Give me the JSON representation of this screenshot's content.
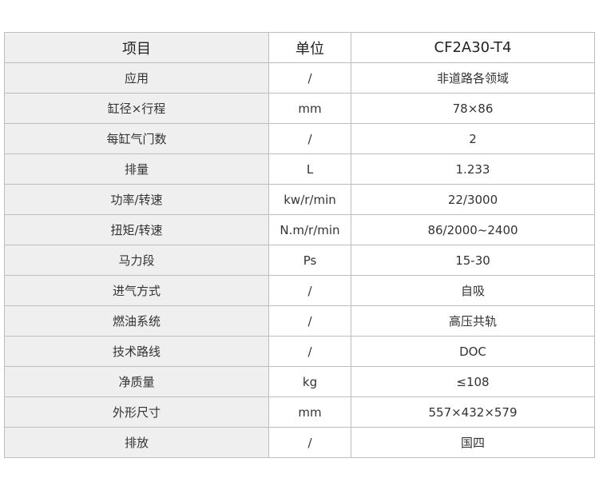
{
  "header": {
    "item": "项目",
    "unit": "单位",
    "model": "CF2A30-T4"
  },
  "rows": [
    {
      "item": "应用",
      "unit": "/",
      "value": "非道路各领域"
    },
    {
      "item": "缸径×行程",
      "unit": "mm",
      "value": "78×86"
    },
    {
      "item": "每缸气门数",
      "unit": "/",
      "value": "2"
    },
    {
      "item": "排量",
      "unit": "L",
      "value": "1.233"
    },
    {
      "item": "功率/转速",
      "unit": "kw/r/min",
      "value": "22/3000"
    },
    {
      "item": "扭矩/转速",
      "unit": "N.m/r/min",
      "value": "86/2000~2400"
    },
    {
      "item": "马力段",
      "unit": "Ps",
      "value": "15-30"
    },
    {
      "item": "进气方式",
      "unit": "/",
      "value": "自吸"
    },
    {
      "item": "燃油系统",
      "unit": "/",
      "value": "高压共轨"
    },
    {
      "item": "技术路线",
      "unit": "/",
      "value": "DOC"
    },
    {
      "item": "净质量",
      "unit": "kg",
      "value": "≤108"
    },
    {
      "item": "外形尺寸",
      "unit": "mm",
      "value": "557×432×579"
    },
    {
      "item": "排放",
      "unit": "/",
      "value": "国四"
    }
  ]
}
